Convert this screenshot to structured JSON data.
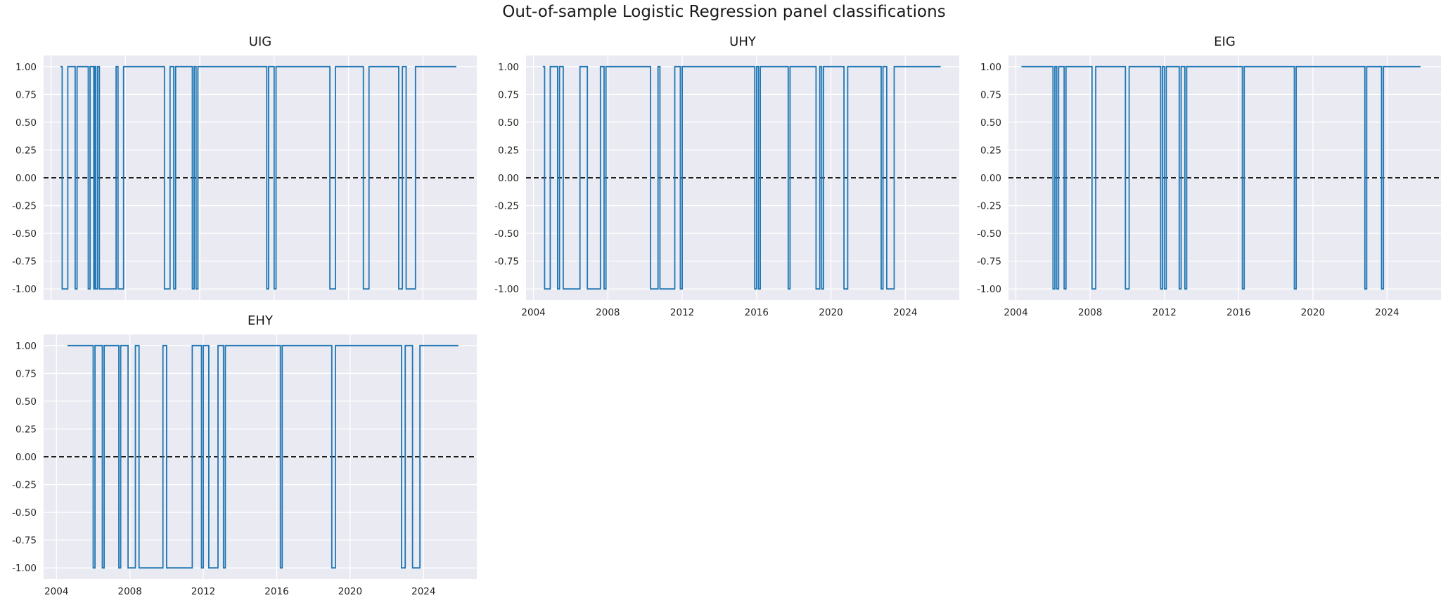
{
  "figure_title": "Out-of-sample Logistic Regression panel classifications",
  "colors": {
    "background": "#EAEAF2",
    "grid": "#FFFFFF",
    "series": "#1F77B4",
    "zero_line": "#000000"
  },
  "chart_data": [
    {
      "type": "line",
      "title": "UIG",
      "xlabel": "",
      "ylabel": "",
      "ylim": [
        -1.1,
        1.1
      ],
      "yticks": [
        "1.00",
        "0.75",
        "0.50",
        "0.25",
        "0.00",
        "-0.25",
        "-0.50",
        "-0.75",
        "-1.00"
      ],
      "xlim": [
        2003.6,
        2026.9
      ],
      "xticks": [],
      "xtick_labels_visible": false,
      "step": true,
      "zero_line": 0,
      "series": [
        {
          "x": [
            2004.5,
            2004.6,
            2004.9,
            2005.3,
            2005.4,
            2006.0,
            2006.1,
            2006.3,
            2006.35,
            2006.4,
            2006.5,
            2006.6,
            2007.5,
            2007.6,
            2007.9,
            2010.1,
            2010.4,
            2010.6,
            2010.7,
            2011.6,
            2011.7,
            2011.8,
            2011.9,
            2015.6,
            2015.7,
            2016.0,
            2016.1,
            2019.0,
            2019.3,
            2020.8,
            2021.1,
            2022.7,
            2022.9,
            2023.1,
            2023.6,
            2025.8
          ],
          "values": [
            1,
            -1,
            1,
            -1,
            1,
            -1,
            1,
            -1,
            1,
            -1,
            1,
            -1,
            1,
            -1,
            1,
            -1,
            1,
            -1,
            1,
            -1,
            1,
            -1,
            1,
            -1,
            1,
            -1,
            1,
            -1,
            1,
            -1,
            1,
            -1,
            1,
            -1,
            1,
            1
          ]
        }
      ]
    },
    {
      "type": "line",
      "title": "UHY",
      "xlabel": "",
      "ylabel": "",
      "ylim": [
        -1.1,
        1.1
      ],
      "yticks": [
        "1.00",
        "0.75",
        "0.50",
        "0.25",
        "0.00",
        "-0.25",
        "-0.50",
        "-0.75",
        "-1.00"
      ],
      "xlim": [
        2003.6,
        2026.9
      ],
      "xticks": [
        "2004",
        "2008",
        "2012",
        "2016",
        "2020",
        "2024"
      ],
      "xtick_labels_visible": true,
      "step": true,
      "zero_line": 0,
      "series": [
        {
          "x": [
            2004.5,
            2004.6,
            2004.9,
            2005.3,
            2005.4,
            2005.6,
            2006.5,
            2006.9,
            2007.6,
            2007.8,
            2007.9,
            2010.3,
            2010.7,
            2010.8,
            2011.6,
            2011.9,
            2012.0,
            2015.9,
            2016.0,
            2016.1,
            2016.2,
            2017.7,
            2017.8,
            2019.2,
            2019.4,
            2019.5,
            2019.6,
            2020.7,
            2020.9,
            2022.7,
            2022.8,
            2023.0,
            2023.4,
            2025.9
          ],
          "values": [
            1,
            -1,
            1,
            -1,
            1,
            -1,
            1,
            -1,
            1,
            -1,
            1,
            -1,
            1,
            -1,
            1,
            -1,
            1,
            -1,
            1,
            -1,
            1,
            -1,
            1,
            -1,
            1,
            -1,
            1,
            -1,
            1,
            -1,
            1,
            -1,
            1,
            1
          ]
        }
      ]
    },
    {
      "type": "line",
      "title": "EIG",
      "xlabel": "",
      "ylabel": "",
      "ylim": [
        -1.1,
        1.1
      ],
      "yticks": [
        "1.00",
        "0.75",
        "0.50",
        "0.25",
        "0.00",
        "-0.25",
        "-0.50",
        "-0.75",
        "-1.00"
      ],
      "xlim": [
        2003.6,
        2026.9
      ],
      "xticks": [
        "2004",
        "2008",
        "2012",
        "2016",
        "2020",
        "2024"
      ],
      "xtick_labels_visible": true,
      "step": true,
      "zero_line": 0,
      "series": [
        {
          "x": [
            2004.3,
            2006.0,
            2006.1,
            2006.2,
            2006.3,
            2006.6,
            2006.7,
            2008.1,
            2008.3,
            2009.9,
            2010.1,
            2011.8,
            2011.9,
            2012.0,
            2012.1,
            2012.8,
            2012.9,
            2013.1,
            2013.2,
            2016.2,
            2016.3,
            2019.0,
            2019.1,
            2022.8,
            2022.9,
            2023.7,
            2023.8,
            2025.8
          ],
          "values": [
            1,
            -1,
            1,
            -1,
            1,
            -1,
            1,
            -1,
            1,
            -1,
            1,
            -1,
            1,
            -1,
            1,
            -1,
            1,
            -1,
            1,
            -1,
            1,
            -1,
            1,
            -1,
            1,
            -1,
            1,
            1
          ]
        }
      ]
    },
    {
      "type": "line",
      "title": "EHY",
      "xlabel": "",
      "ylabel": "",
      "ylim": [
        -1.1,
        1.1
      ],
      "yticks": [
        "1.00",
        "0.75",
        "0.50",
        "0.25",
        "0.00",
        "-0.25",
        "-0.50",
        "-0.75",
        "-1.00"
      ],
      "xlim": [
        2003.3,
        2026.9
      ],
      "xticks": [
        "2004",
        "2008",
        "2012",
        "2016",
        "2020",
        "2024"
      ],
      "xtick_labels_visible": true,
      "step": true,
      "zero_line": 0,
      "series": [
        {
          "x": [
            2004.6,
            2006.0,
            2006.1,
            2006.5,
            2006.6,
            2007.4,
            2007.5,
            2007.9,
            2008.3,
            2008.5,
            2009.8,
            2010.0,
            2011.4,
            2011.9,
            2012.0,
            2012.3,
            2012.8,
            2013.1,
            2013.2,
            2016.2,
            2016.3,
            2019.0,
            2019.2,
            2022.8,
            2023.0,
            2023.4,
            2023.8,
            2025.9
          ],
          "values": [
            1,
            -1,
            1,
            -1,
            1,
            -1,
            1,
            -1,
            1,
            -1,
            1,
            -1,
            1,
            -1,
            1,
            -1,
            1,
            -1,
            1,
            -1,
            1,
            -1,
            1,
            -1,
            1,
            -1,
            1,
            1
          ]
        }
      ]
    }
  ]
}
